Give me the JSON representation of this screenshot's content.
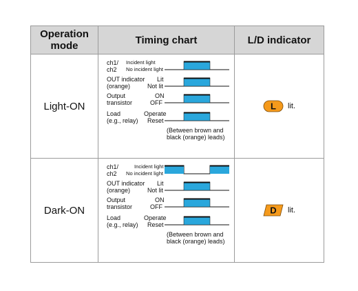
{
  "header": {
    "mode": "Operation mode",
    "timing": "Timing chart",
    "indicator": "L/D indicator"
  },
  "rows": [
    {
      "mode": "Light-ON",
      "labels": {
        "ch": "ch1/\nch2",
        "incident": "Incident light",
        "no_incident": "No incident light",
        "out": "OUT indicator\n(orange)",
        "lit": "Lit",
        "not_lit": "Not lit",
        "output": "Output\ntransistor",
        "on": "ON",
        "off": "OFF",
        "load": "Load\n(e.g., relay)",
        "operate": "Operate",
        "reset": "Reset"
      },
      "note": "(Between brown and\nblack (orange) leads)",
      "indicator_letter": "L",
      "indicator_text": "lit."
    },
    {
      "mode": "Dark-ON",
      "labels": {
        "ch": "ch1/\nch2",
        "incident": "Incident light",
        "no_incident": "No incident light",
        "out": "OUT indicator\n(orange)",
        "lit": "Lit",
        "not_lit": "Not lit",
        "output": "Output\ntransistor",
        "on": "ON",
        "off": "OFF",
        "load": "Load\n(e.g., relay)",
        "operate": "Operate",
        "reset": "Reset"
      },
      "note": "(Between brown and\nblack (orange) leads)",
      "indicator_letter": "D",
      "indicator_text": "lit."
    }
  ],
  "colors": {
    "pulse_fill": "#2aa7dc",
    "pulse_top": "#111111",
    "indicator_fill": "#f59a1c"
  }
}
